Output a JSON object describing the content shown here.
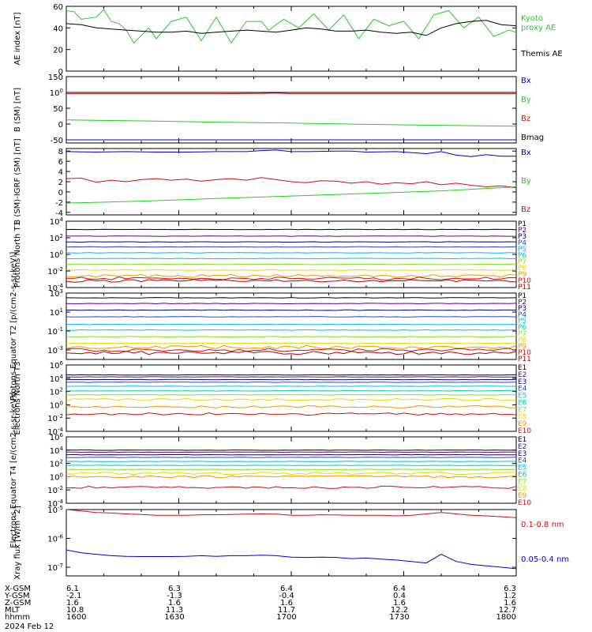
{
  "colors": {
    "black": "#000000",
    "green": "#22cc22",
    "red": "#cc1111",
    "blue": "#0000cc",
    "navy": "#000080",
    "purple": "#6a0080",
    "royal": "#2244dd",
    "cyan": "#00bbee",
    "teal": "#00c8a8",
    "lime": "#88dd22",
    "yellow": "#dddd00",
    "orange": "#ee9900",
    "darkred": "#aa0000"
  },
  "chart_data": [
    {
      "type": "line",
      "panel": 1,
      "ylabel": "AE index [nT]",
      "ylim": [
        0,
        60
      ],
      "yticks": [
        "0",
        "20",
        "40",
        "60"
      ],
      "series": [
        {
          "name": "Kyoto proxy AE",
          "color": "green",
          "x": [
            0,
            1,
            2,
            4,
            5,
            6,
            7,
            8,
            9,
            11,
            12,
            14,
            16,
            18,
            20,
            22,
            24,
            26,
            27,
            29,
            31,
            33,
            35,
            37,
            39,
            41,
            43,
            45,
            47,
            49,
            51,
            53,
            55,
            57,
            59,
            60
          ],
          "values": [
            56,
            55,
            48,
            50,
            57,
            46,
            44,
            38,
            26,
            40,
            30,
            46,
            50,
            28,
            50,
            26,
            46,
            46,
            38,
            48,
            40,
            53,
            38,
            52,
            30,
            48,
            42,
            46,
            30,
            52,
            56,
            40,
            50,
            32,
            38,
            36
          ]
        },
        {
          "name": "Themis AE",
          "color": "black",
          "x": [
            0,
            2,
            4,
            6,
            8,
            10,
            12,
            14,
            16,
            18,
            20,
            22,
            24,
            26,
            28,
            30,
            32,
            34,
            36,
            38,
            40,
            42,
            44,
            46,
            48,
            50,
            52,
            54,
            56,
            58,
            60
          ],
          "values": [
            44,
            43,
            40,
            39,
            38,
            37,
            36,
            36,
            37,
            35,
            36,
            37,
            38,
            37,
            36,
            38,
            40,
            39,
            37,
            37,
            38,
            36,
            35,
            36,
            33,
            40,
            44,
            46,
            47,
            43,
            42
          ]
        }
      ]
    },
    {
      "type": "line",
      "panel": 2,
      "ylabel": "B (SM) [nT]",
      "ylim": [
        -60,
        150
      ],
      "yticks": [
        "-50",
        "0",
        "50",
        "100",
        "150"
      ],
      "series": [
        {
          "name": "Bx",
          "color": "blue",
          "x": [
            0,
            60
          ],
          "values": [
            -50,
            -50
          ]
        },
        {
          "name": "By",
          "color": "green",
          "x": [
            0,
            10,
            20,
            30,
            40,
            50,
            60
          ],
          "values": [
            13,
            10,
            6,
            3,
            -1,
            -4,
            -7
          ]
        },
        {
          "name": "Bz",
          "color": "red",
          "x": [
            0,
            20,
            26,
            28,
            30,
            60
          ],
          "values": [
            96,
            96,
            97,
            98,
            96,
            96
          ]
        },
        {
          "name": "Bmag",
          "color": "black",
          "x": [
            0,
            60
          ],
          "values": [
            100,
            100
          ]
        }
      ]
    },
    {
      "type": "line",
      "panel": 3,
      "ylabel": "B (SM)-IGRF (SM) [nT]",
      "ylim": [
        -4.5,
        8.5
      ],
      "yticks": [
        "-4",
        "-2",
        "0",
        "2",
        "4",
        "6",
        "8"
      ],
      "series": [
        {
          "name": "Bx",
          "color": "blue",
          "x": [
            0,
            4,
            8,
            12,
            16,
            20,
            24,
            26,
            28,
            30,
            32,
            36,
            38,
            40,
            44,
            48,
            50,
            52,
            54,
            56,
            58,
            60
          ],
          "values": [
            7.9,
            7.8,
            7.9,
            7.8,
            7.8,
            7.9,
            7.9,
            8.1,
            8.2,
            7.9,
            7.9,
            8.0,
            8.0,
            7.8,
            7.9,
            7.5,
            7.9,
            7.2,
            6.9,
            7.3,
            7.0,
            7.0
          ]
        },
        {
          "name": "By",
          "color": "green",
          "x": [
            0,
            10,
            20,
            30,
            40,
            50,
            60
          ],
          "values": [
            -2.2,
            -1.8,
            -1.3,
            -0.8,
            -0.3,
            0.2,
            1.0
          ]
        },
        {
          "name": "Bz",
          "color": "red",
          "x": [
            0,
            2,
            4,
            6,
            8,
            10,
            12,
            14,
            16,
            18,
            20,
            22,
            24,
            26,
            28,
            30,
            32,
            34,
            36,
            38,
            40,
            42,
            44,
            46,
            48,
            50,
            52,
            54,
            56,
            58,
            60
          ],
          "values": [
            2.6,
            2.7,
            1.9,
            2.3,
            2.0,
            2.4,
            2.6,
            2.3,
            2.5,
            2.1,
            2.4,
            2.6,
            2.3,
            2.8,
            2.4,
            2.0,
            1.8,
            2.2,
            2.1,
            1.7,
            2.0,
            1.5,
            1.8,
            1.6,
            2.0,
            1.4,
            1.7,
            1.3,
            1.0,
            1.2,
            0.8
          ]
        }
      ]
    },
    {
      "type": "line",
      "panel": 4,
      "scale": "log",
      "ylabel": "Protons North T1",
      "ylim": [
        -4,
        4
      ],
      "yticks": [
        "10-4",
        "10-2",
        "100",
        "102",
        "104"
      ],
      "channels": [
        {
          "name": "P1",
          "color": "black",
          "level": 3.0
        },
        {
          "name": "P2",
          "color": "purple",
          "level": 2.2
        },
        {
          "name": "P3",
          "color": "navy",
          "level": 1.5
        },
        {
          "name": "P4",
          "color": "royal",
          "level": 0.9
        },
        {
          "name": "P5",
          "color": "cyan",
          "level": 0.2
        },
        {
          "name": "P6",
          "color": "teal",
          "level": -0.5
        },
        {
          "name": "P7",
          "color": "lime",
          "level": -1.2
        },
        {
          "name": "P8",
          "color": "yellow",
          "level": -1.9
        },
        {
          "name": "P9",
          "color": "orange",
          "level": -2.6
        },
        {
          "name": "P10",
          "color": "red",
          "level": -2.9
        },
        {
          "name": "P11",
          "color": "darkred",
          "level": -3.2
        }
      ]
    },
    {
      "type": "line",
      "panel": 5,
      "scale": "log",
      "ylabel": "Protons Equator T2 [p/(cm2-s-sr-keV)]",
      "ylim": [
        -4,
        3
      ],
      "yticks": [
        "10-3",
        "10-1",
        "101",
        "103"
      ],
      "channels": [
        {
          "name": "P1",
          "color": "black",
          "level": 2.5
        },
        {
          "name": "P2",
          "color": "purple",
          "level": 1.9
        },
        {
          "name": "P3",
          "color": "navy",
          "level": 1.2
        },
        {
          "name": "P4",
          "color": "royal",
          "level": 0.5
        },
        {
          "name": "P5",
          "color": "cyan",
          "level": -0.3
        },
        {
          "name": "P6",
          "color": "teal",
          "level": -0.9
        },
        {
          "name": "P7",
          "color": "lime",
          "level": -1.6
        },
        {
          "name": "P8",
          "color": "yellow",
          "level": -2.3
        },
        {
          "name": "P9",
          "color": "orange",
          "level": -2.7
        },
        {
          "name": "P10",
          "color": "red",
          "level": -3.0
        },
        {
          "name": "P11",
          "color": "darkred",
          "level": -3.3
        }
      ]
    },
    {
      "type": "line",
      "panel": 6,
      "scale": "log",
      "ylabel": "Electrons North T3",
      "ylim": [
        -4,
        6
      ],
      "yticks": [
        "10-4",
        "10-2",
        "100",
        "102",
        "104",
        "106"
      ],
      "channels": [
        {
          "name": "E1",
          "color": "black",
          "level": 4.5
        },
        {
          "name": "E2",
          "color": "purple",
          "level": 4.2
        },
        {
          "name": "E3",
          "color": "navy",
          "level": 3.8
        },
        {
          "name": "E4",
          "color": "royal",
          "level": 3.4
        },
        {
          "name": "E5",
          "color": "cyan",
          "level": 2.8
        },
        {
          "name": "E6",
          "color": "teal",
          "level": 2.1
        },
        {
          "name": "E7",
          "color": "lime",
          "level": 1.5
        },
        {
          "name": "E8",
          "color": "yellow",
          "level": 0.8
        },
        {
          "name": "E9",
          "color": "orange",
          "level": -0.3
        },
        {
          "name": "E10",
          "color": "red",
          "level": -1.4
        }
      ]
    },
    {
      "type": "line",
      "panel": 7,
      "scale": "log",
      "ylabel": "Electrons Equator T4 [e/(cm2-s-sr-keV)]",
      "ylim": [
        -4,
        6
      ],
      "yticks": [
        "10-4",
        "10-2",
        "100",
        "102",
        "104",
        "106"
      ],
      "channels": [
        {
          "name": "E1",
          "color": "black",
          "level": 4.0
        },
        {
          "name": "E2",
          "color": "purple",
          "level": 3.7
        },
        {
          "name": "E3",
          "color": "navy",
          "level": 3.3
        },
        {
          "name": "E4",
          "color": "royal",
          "level": 2.9
        },
        {
          "name": "E5",
          "color": "cyan",
          "level": 2.3
        },
        {
          "name": "E6",
          "color": "teal",
          "level": 1.7
        },
        {
          "name": "E7",
          "color": "lime",
          "level": 1.1
        },
        {
          "name": "E8",
          "color": "yellow",
          "level": 0.5
        },
        {
          "name": "E9",
          "color": "orange",
          "level": 0.0
        },
        {
          "name": "E10",
          "color": "red",
          "level": -1.6
        }
      ]
    },
    {
      "type": "line",
      "panel": 8,
      "scale": "log",
      "ylabel": "Xray flux [W/m^2]",
      "ylim": [
        -7.3,
        -5.0
      ],
      "yticks": [
        "10-7",
        "10-6",
        "10-5"
      ],
      "series": [
        {
          "name": "0.1-0.8 nm",
          "color": "red",
          "x": [
            0,
            2,
            4,
            6,
            8,
            10,
            12,
            14,
            16,
            18,
            20,
            22,
            24,
            26,
            28,
            30,
            32,
            34,
            36,
            38,
            40,
            42,
            44,
            46,
            48,
            50,
            52,
            54,
            56,
            58,
            60
          ],
          "values": [
            -5.0,
            -5.05,
            -5.1,
            -5.12,
            -5.15,
            -5.17,
            -5.2,
            -5.2,
            -5.2,
            -5.18,
            -5.18,
            -5.17,
            -5.16,
            -5.15,
            -5.16,
            -5.2,
            -5.2,
            -5.18,
            -5.19,
            -5.2,
            -5.2,
            -5.2,
            -5.22,
            -5.2,
            -5.15,
            -5.1,
            -5.15,
            -5.2,
            -5.22,
            -5.25,
            -5.28
          ]
        },
        {
          "name": "0.05-0.4 nm",
          "color": "blue",
          "x": [
            0,
            2,
            4,
            6,
            8,
            10,
            12,
            14,
            16,
            18,
            20,
            22,
            24,
            26,
            28,
            30,
            32,
            34,
            36,
            38,
            40,
            42,
            44,
            46,
            48,
            50,
            52,
            54,
            56,
            58,
            60
          ],
          "values": [
            -6.4,
            -6.5,
            -6.55,
            -6.6,
            -6.62,
            -6.63,
            -6.63,
            -6.63,
            -6.62,
            -6.6,
            -6.62,
            -6.6,
            -6.6,
            -6.58,
            -6.6,
            -6.65,
            -6.66,
            -6.65,
            -6.66,
            -6.7,
            -6.68,
            -6.72,
            -6.75,
            -6.8,
            -6.85,
            -6.55,
            -6.8,
            -6.9,
            -6.95,
            -7.0,
            -7.05
          ]
        }
      ]
    }
  ],
  "xaxis": {
    "rows": [
      {
        "label": "X-GSM",
        "values": [
          "6.1",
          "6.3",
          "6.4",
          "6.4",
          "6.3"
        ]
      },
      {
        "label": "Y-GSM",
        "values": [
          "-2.1",
          "-1.3",
          "-0.4",
          "0.4",
          "1.2"
        ]
      },
      {
        "label": "Z-GSM",
        "values": [
          "1.6",
          "1.6",
          "1.6",
          "1.6",
          "1.6"
        ]
      },
      {
        "label": "MLT",
        "values": [
          "10.8",
          "11.3",
          "11.7",
          "12.2",
          "12.7"
        ]
      },
      {
        "label": "hhmm",
        "values": [
          "1600",
          "1630",
          "1700",
          "1730",
          "1800"
        ]
      }
    ],
    "date": "2024 Feb 12"
  }
}
